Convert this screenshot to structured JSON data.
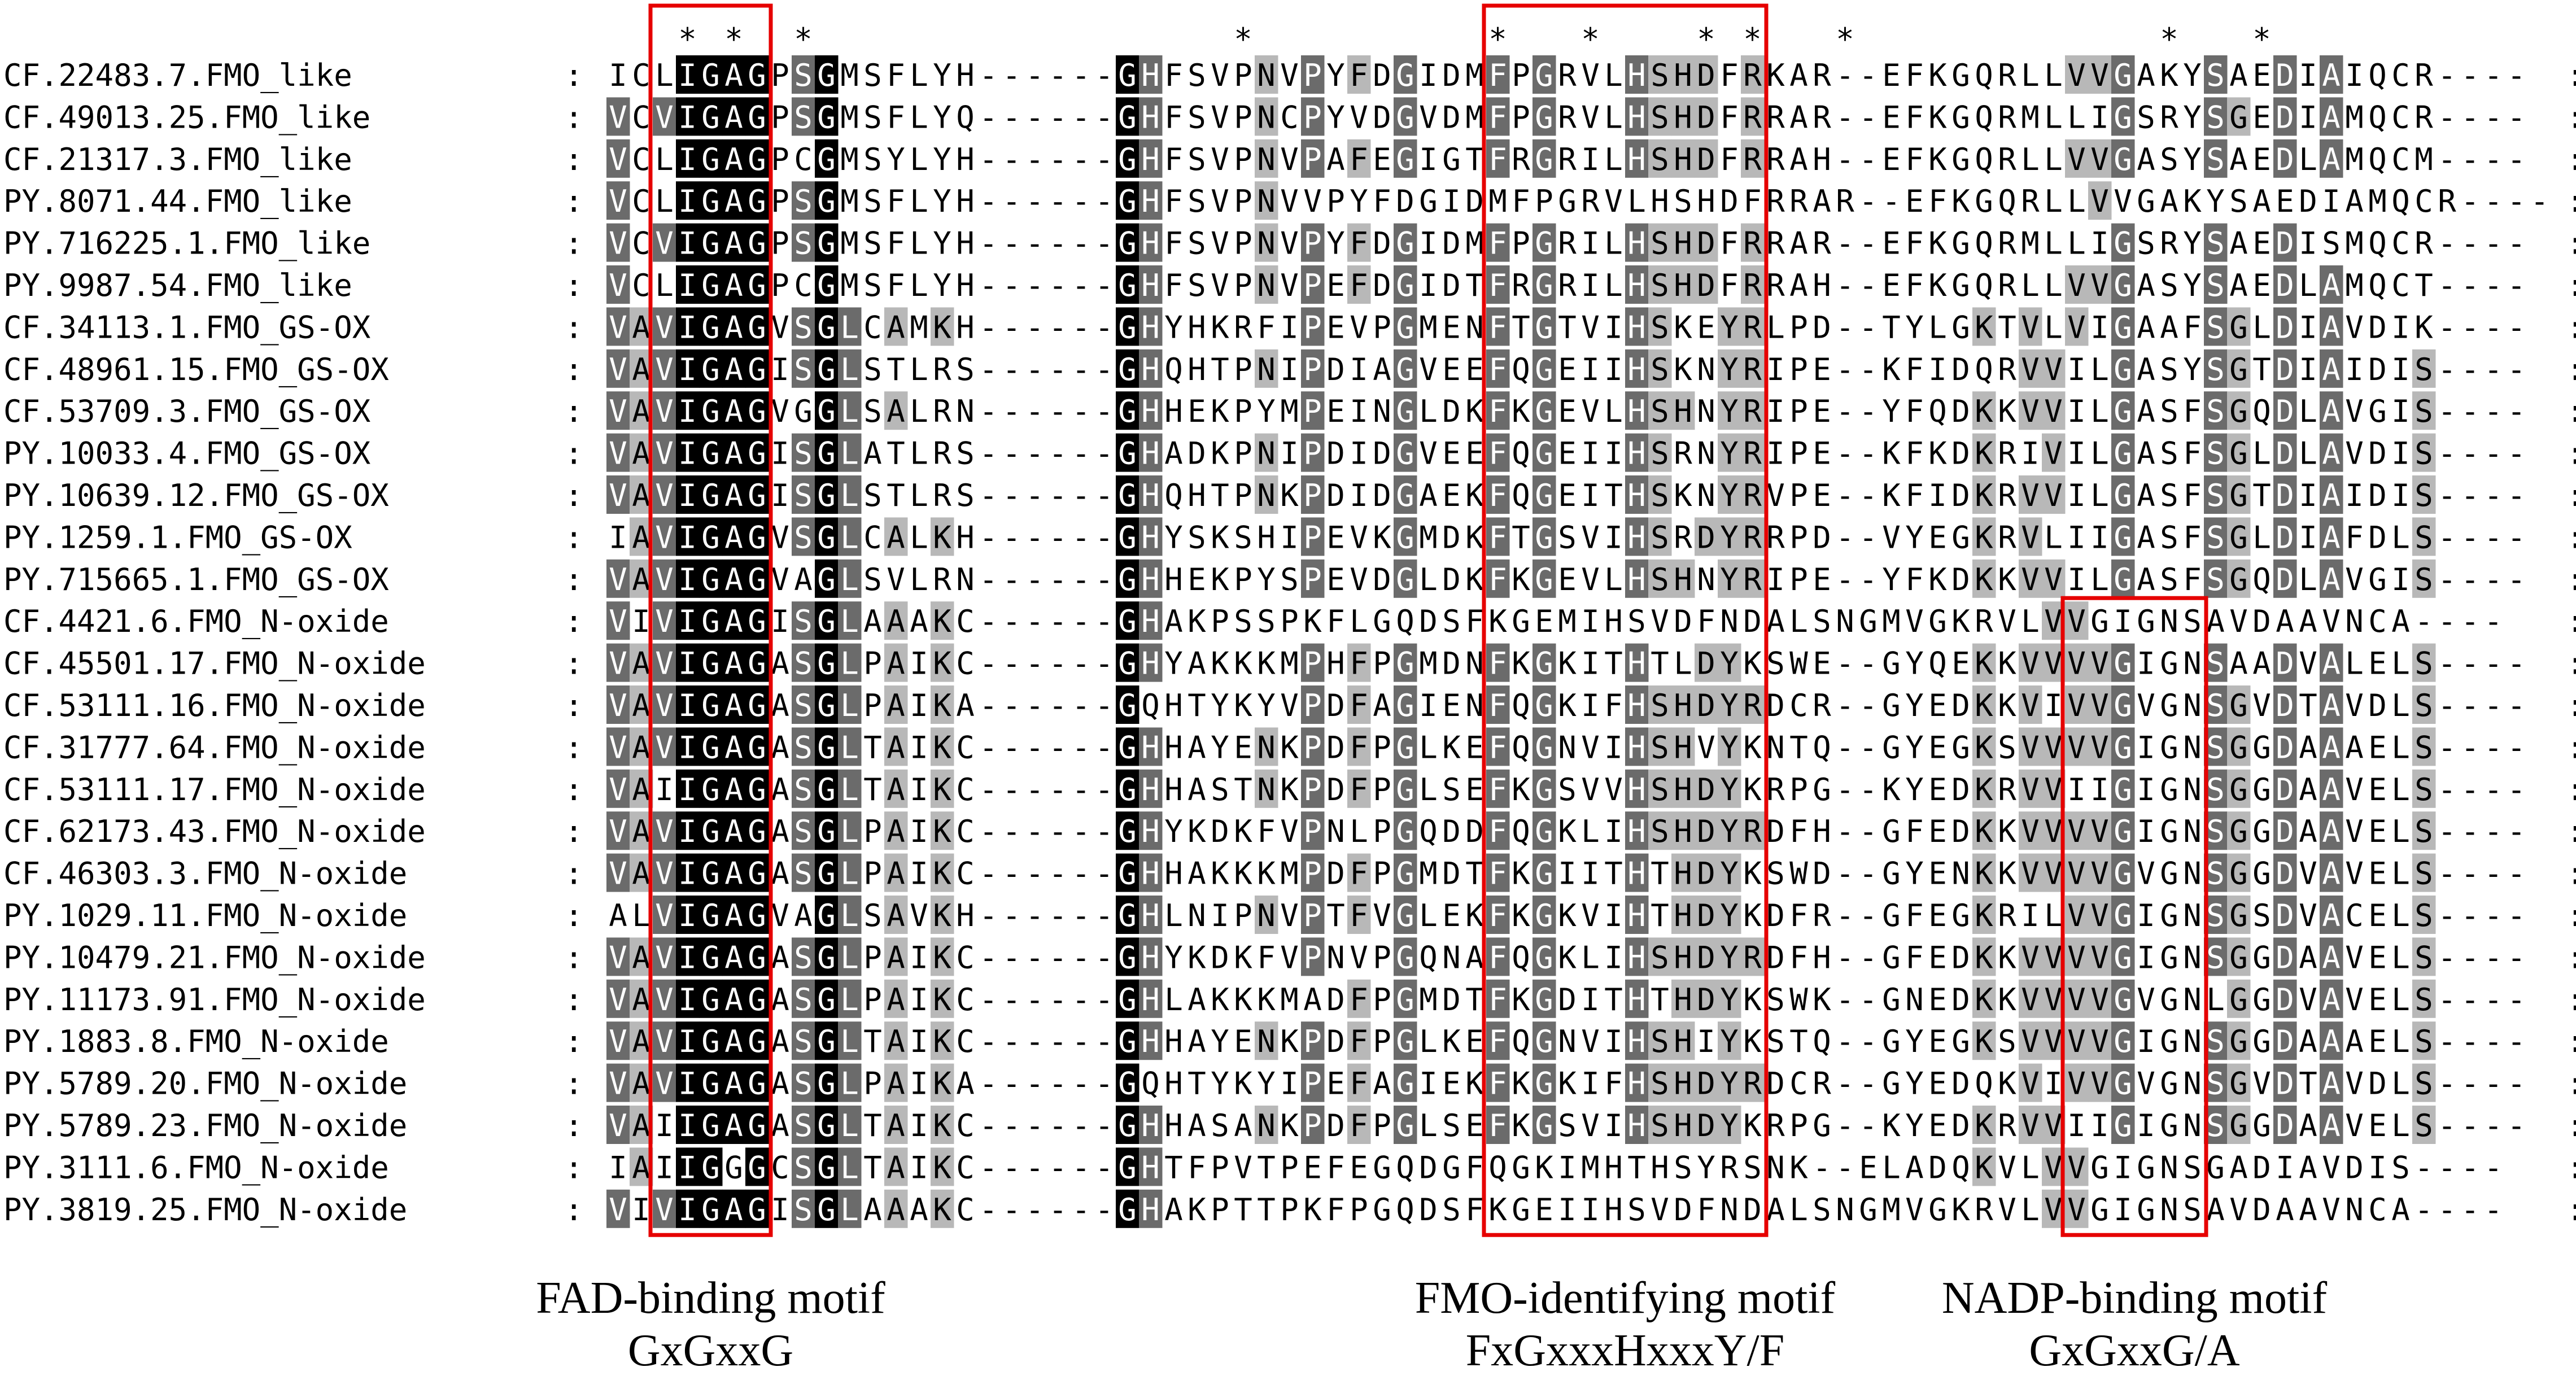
{
  "alignment": {
    "conserved_marker": "*",
    "gap_char": "-",
    "separator": ":",
    "shade_colors": {
      "identical": "#000000",
      "high": "#6b6b6b",
      "low": "#b8b8b8",
      "none": "#ffffff"
    },
    "box_color": "#e60000",
    "columns_with_asterisk": [
      3,
      5,
      8,
      27,
      38,
      42,
      47,
      49,
      53,
      67,
      71
    ],
    "sequences": [
      {
        "name": "CF.22483.7.FMO_like",
        "seq": "ICLIGAGPSGMSFLYH------GHFSVPNVPYFDGIDMFPGRVLHSHDFRKAR--EFKGQRLLVVGAKYSAEDIAIQCR----"
      },
      {
        "name": "CF.49013.25.FMO_like",
        "seq": "VCVIGAGPSGMSFLYQ------GHFSVPNCPYVDGVDMFPGRVLHSHDFRRAR--EFKGQRMLLIGSRYSGEDIAMQCR----"
      },
      {
        "name": "CF.21317.3.FMO_like",
        "seq": "VCLIGAGPCGMSYLYH------GHFSVPNVPAFEGIGTFRGRILHSHDFRRAH--EFKGQRLLVVGASYSAEDLAMQCM----"
      },
      {
        "name": "PY.8071.44.FMO_like",
        "seq": "VCLIGAGPSGMSFLYH------GHFSVPNVVPYFDGIDMFPGRVLHSHDFRRAR--EFKGQRLLVVGAKYSAEDIAMQCR----"
      },
      {
        "name": "PY.716225.1.FMO_like",
        "seq": "VCVIGAGPSGMSFLYH------GHFSVPNVPYFDGIDMFPGRILHSHDFRRAR--EFKGQRMLLIGSRYSAEDISMQCR----"
      },
      {
        "name": "PY.9987.54.FMO_like",
        "seq": "VCLIGAGPCGMSFLYH------GHFSVPNVPEFDGIDTFRGRILHSHDFRRAH--EFKGQRLLVVGASYSAEDLAMQCT----"
      },
      {
        "name": "CF.34113.1.FMO_GS-OX",
        "seq": "VAVIGAGVSGLCAMKH------GHYHKRFIPEVPGMENFTGTVIHSKEYRLPD--TYLGKTVLVIGAAFSGLDIAVDIK----"
      },
      {
        "name": "CF.48961.15.FMO_GS-OX",
        "seq": "VAVIGAGISGLSTLRS------GHQHTPNIPDIAGVEEFQGEIIHSKNYRIPE--KFIDQRVVILGASYSGTDIAIDIS----"
      },
      {
        "name": "CF.53709.3.FMO_GS-OX",
        "seq": "VAVIGAGVGGLSALRN------GHHEKPYMPEINGLDKFKGEVLHSHNYRIPE--YFQDKKVVILGASFSGQDLAVGIS----"
      },
      {
        "name": "PY.10033.4.FMO_GS-OX",
        "seq": "VAVIGAGISGLATLRS------GHADKPNIPDIDGVEEFQGEIIHSRNYRIPE--KFKDKRIVILGASFSGLDLAVDIS----"
      },
      {
        "name": "PY.10639.12.FMO_GS-OX",
        "seq": "VAVIGAGISGLSTLRS------GHQHTPNKPDIDGAEKFQGEITHSKNYRVPE--KFIDKRVVILGASFSGTDIAIDIS----"
      },
      {
        "name": "PY.1259.1.FMO_GS-OX",
        "seq": "IAVIGAGVSGLCALKH------GHYSKSHIPEVKGMDKFTGSVIHSRDYRRPD--VYEGKRVLIIGASFSGLDIAFDLS----"
      },
      {
        "name": "PY.715665.1.FMO_GS-OX",
        "seq": "VAVIGAGVAGLSVLRN------GHHEKPYSPEVDGLDKFKGEVLHSHNYRIPE--YFKDKKVVILGASFSGQDLAVGIS----"
      },
      {
        "name": "CF.4421.6.FMO_N-oxide",
        "seq": "VIVIGAGISGLAAAKC------GHAKPSSPKFLGQDSFKGEMIHSVDFNDALSNGMVGKRVLVVGIGNSAVDAAVNCA----"
      },
      {
        "name": "CF.45501.17.FMO_N-oxide",
        "seq": "VAVIGAGASGLPAIKC------GHYAKKKMPHFPGMDNFKGKITHTLDYKSWE--GYQEKKVVVVGIGNSAADVALELS----"
      },
      {
        "name": "CF.53111.16.FMO_N-oxide",
        "seq": "VAVIGAGASGLPAIKA------GQHTYKYVPDFAGIENFQGKIFHSHDYRDCR--GYEDKKVIVVGVGNSGVDTAVDLS----"
      },
      {
        "name": "CF.31777.64.FMO_N-oxide",
        "seq": "VAVIGAGASGLTAIKC------GHHAYENKPDFPGLKEFQGNVIHSHVYKNTQ--GYEGKSVVVVGIGNSGGDAAAELS----"
      },
      {
        "name": "CF.53111.17.FMO_N-oxide",
        "seq": "VAIIGAGASGLTAIKC------GHHASTNKPDFPGLSEFKGSVVHSHDYKRPG--KYEDKRVVIIGIGNSGGDAAVELS----"
      },
      {
        "name": "CF.62173.43.FMO_N-oxide",
        "seq": "VAVIGAGASGLPAIKC------GHYKDKFVPNLPGQDDFQGKLIHSHDYRDFH--GFEDKKVVVVGIGNSGGDAAVELS----"
      },
      {
        "name": "CF.46303.3.FMO_N-oxide",
        "seq": "VAVIGAGASGLPAIKC------GHHAKKKMPDFPGMDTFKGIITHTHDYKSWD--GYENKKVVVVGVGNSGGDVAVELS----"
      },
      {
        "name": "PY.1029.11.FMO_N-oxide",
        "seq": "ALVIGAGVAGLSAVKH------GHLNIPNVPTFVGLEKFKGKVIHTHDYKDFR--GFEGKRILVVGIGNSGSDVACELS----"
      },
      {
        "name": "PY.10479.21.FMO_N-oxide",
        "seq": "VAVIGAGASGLPAIKC------GHYKDKFVPNVPGQNAFQGKLIHSHDYRDFH--GFEDKKVVVVGIGNSGGDAAVELS----"
      },
      {
        "name": "PY.11173.91.FMO_N-oxide",
        "seq": "VAVIGAGASGLPAIKC------GHLAKKKMADFPGMDTFKGDITHTHDYKSWK--GNEDKKVVVVGVGNLGGDVAVELS----"
      },
      {
        "name": "PY.1883.8.FMO_N-oxide",
        "seq": "VAVIGAGASGLTAIKC------GHHAYENKPDFPGLKEFQGNVIHSHIYKSTQ--GYEGKSVVVVGIGNSGGDAAAELS----"
      },
      {
        "name": "PY.5789.20.FMO_N-oxide",
        "seq": "VAVIGAGASGLPAIKA------GQHTYKYIPEFAGIEKFKGKIFHSHDYRDCR--GYEDQKVIVVGVGNSGVDTAVDLS----"
      },
      {
        "name": "PY.5789.23.FMO_N-oxide",
        "seq": "VAIIGAGASGLTAIKC------GHHASANKPDFPGLSEFKGSVIHSHDYKRPG--KYEDKRVVIIGIGNSGGDAAVELS----"
      },
      {
        "name": "PY.3111.6.FMO_N-oxide",
        "seq": "IAIIGGGCSGLTAIKC------GHTFPVTPEFEGQDGFQGKIMHTHSYRSNK--ELADQKVLVVGIGNSGADIAVDIS----"
      },
      {
        "name": "PY.3819.25.FMO_N-oxide",
        "seq": "VIVIGAGISGLAAAKC------GHAKPTTPKFPGQDSFKGEIIHSVDFNDALSNGMVGKRVLVVGIGNSAVDAAVNCA----"
      }
    ],
    "motif_boxes": [
      {
        "label": "FAD-binding motif",
        "pattern": "GxGxxG"
      },
      {
        "label": "FMO-identifying motif",
        "pattern": "FxGxxxHxxxY/F"
      },
      {
        "label": "NADP-binding motif",
        "pattern": "GxGxxG/A"
      }
    ]
  }
}
